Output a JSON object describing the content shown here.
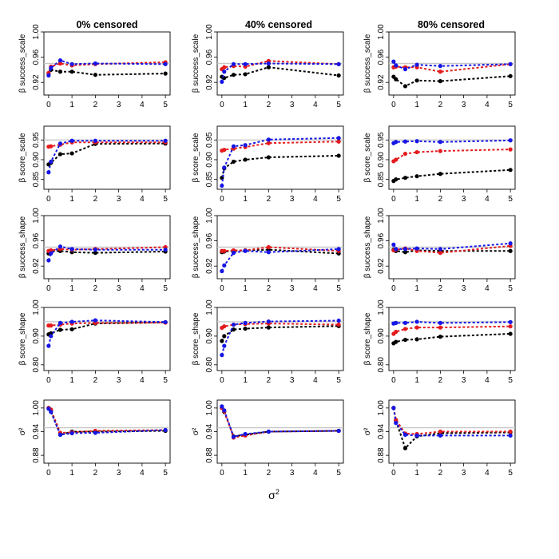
{
  "figure": {
    "column_titles": [
      "0% censored",
      "40% censored",
      "80% censored"
    ],
    "x_axis_title": "σ",
    "x_axis_title_superscript": "2",
    "x_ticks": [
      0,
      1,
      2,
      3,
      4,
      5
    ],
    "series_colors": {
      "black": "#000000",
      "red": "#e41a1c",
      "blue": "#1515e6"
    },
    "reference_line_color": "#c8c8c8"
  },
  "chart_data": [
    {
      "row": 0,
      "col": 0,
      "type": "line",
      "title": "0% censored",
      "ylabel": "β success_scale",
      "ylim": [
        0.9,
        1.0
      ],
      "yticks": [
        "0.92",
        "0.96",
        "1.00"
      ],
      "ref": 0.95,
      "x": [
        0,
        0.1,
        0.5,
        1,
        2,
        5
      ],
      "series": [
        {
          "name": "black",
          "values": [
            0.934,
            0.94,
            0.937,
            0.937,
            0.932,
            0.934
          ]
        },
        {
          "name": "red",
          "values": [
            0.935,
            0.945,
            0.95,
            0.947,
            0.949,
            0.952
          ]
        },
        {
          "name": "blue",
          "values": [
            0.931,
            0.943,
            0.955,
            0.949,
            0.95,
            0.949
          ]
        }
      ]
    },
    {
      "row": 0,
      "col": 1,
      "type": "line",
      "title": "40% censored",
      "ylabel": "β success_scale",
      "ylim": [
        0.9,
        1.0
      ],
      "yticks": [
        "0.92",
        "0.96",
        "1.00"
      ],
      "ref": 0.95,
      "x": [
        0,
        0.1,
        0.5,
        1,
        2,
        5
      ],
      "series": [
        {
          "name": "black",
          "values": [
            0.929,
            0.927,
            0.932,
            0.933,
            0.944,
            0.931
          ]
        },
        {
          "name": "red",
          "values": [
            0.941,
            0.944,
            0.946,
            0.945,
            0.954,
            0.949
          ]
        },
        {
          "name": "blue",
          "values": [
            0.921,
            0.937,
            0.949,
            0.949,
            0.95,
            0.949
          ]
        }
      ]
    },
    {
      "row": 0,
      "col": 2,
      "type": "line",
      "title": "80% censored",
      "ylabel": "β success_scale",
      "ylim": [
        0.9,
        1.0
      ],
      "yticks": [
        "0.92",
        "0.96",
        "1.00"
      ],
      "ref": 0.95,
      "x": [
        0,
        0.1,
        0.5,
        1,
        2,
        5
      ],
      "series": [
        {
          "name": "black",
          "values": [
            0.929,
            0.925,
            0.914,
            0.923,
            0.922,
            0.93
          ]
        },
        {
          "name": "red",
          "values": [
            0.944,
            0.945,
            0.944,
            0.944,
            0.937,
            0.949
          ]
        },
        {
          "name": "blue",
          "values": [
            0.953,
            0.947,
            0.941,
            0.948,
            0.946,
            0.949
          ]
        }
      ]
    },
    {
      "row": 1,
      "col": 0,
      "type": "line",
      "title": "0% censored",
      "ylabel": "β score_scale",
      "ylim": [
        0.825,
        0.985
      ],
      "yticks": [
        "0.85",
        "0.90",
        "0.95"
      ],
      "ref": 0.95,
      "x": [
        0,
        0.1,
        0.5,
        1,
        2,
        5
      ],
      "series": [
        {
          "name": "black",
          "values": [
            0.888,
            0.892,
            0.914,
            0.916,
            0.94,
            0.941
          ]
        },
        {
          "name": "red",
          "values": [
            0.933,
            0.934,
            0.938,
            0.944,
            0.944,
            0.944
          ]
        },
        {
          "name": "blue",
          "values": [
            0.868,
            0.895,
            0.941,
            0.948,
            0.948,
            0.948
          ]
        }
      ]
    },
    {
      "row": 1,
      "col": 1,
      "type": "line",
      "title": "40% censored",
      "ylabel": "β score_scale",
      "ylim": [
        0.825,
        0.985
      ],
      "yticks": [
        "0.85",
        "0.90",
        "0.95"
      ],
      "ref": 0.95,
      "x": [
        0,
        0.1,
        0.5,
        1,
        2,
        5
      ],
      "series": [
        {
          "name": "black",
          "values": [
            0.854,
            0.878,
            0.895,
            0.9,
            0.906,
            0.91
          ]
        },
        {
          "name": "red",
          "values": [
            0.923,
            0.925,
            0.928,
            0.932,
            0.942,
            0.946
          ]
        },
        {
          "name": "blue",
          "values": [
            0.834,
            0.88,
            0.934,
            0.937,
            0.951,
            0.955
          ]
        }
      ]
    },
    {
      "row": 1,
      "col": 2,
      "type": "line",
      "title": "80% censored",
      "ylabel": "β score_scale",
      "ylim": [
        0.825,
        0.985
      ],
      "yticks": [
        "0.85",
        "0.90",
        "0.95"
      ],
      "ref": 0.95,
      "x": [
        0,
        0.1,
        0.5,
        1,
        2,
        5
      ],
      "series": [
        {
          "name": "black",
          "values": [
            0.846,
            0.85,
            0.854,
            0.858,
            0.864,
            0.874
          ]
        },
        {
          "name": "red",
          "values": [
            0.896,
            0.9,
            0.915,
            0.919,
            0.922,
            0.926
          ]
        },
        {
          "name": "blue",
          "values": [
            0.942,
            0.945,
            0.946,
            0.947,
            0.945,
            0.949
          ]
        }
      ]
    },
    {
      "row": 2,
      "col": 0,
      "type": "line",
      "title": "0% censored",
      "ylabel": "β success_shape",
      "ylim": [
        0.9,
        1.0
      ],
      "yticks": [
        "0.92",
        "0.96",
        "1.00"
      ],
      "ref": 0.95,
      "x": [
        0,
        0.1,
        0.5,
        1,
        2,
        5
      ],
      "series": [
        {
          "name": "black",
          "values": [
            0.94,
            0.943,
            0.944,
            0.942,
            0.941,
            0.943
          ]
        },
        {
          "name": "red",
          "values": [
            0.944,
            0.945,
            0.947,
            0.946,
            0.947,
            0.95
          ]
        },
        {
          "name": "blue",
          "values": [
            0.929,
            0.94,
            0.951,
            0.947,
            0.946,
            0.946
          ]
        }
      ]
    },
    {
      "row": 2,
      "col": 1,
      "type": "line",
      "title": "40% censored",
      "ylabel": "β success_shape",
      "ylim": [
        0.9,
        1.0
      ],
      "yticks": [
        "0.92",
        "0.96",
        "1.00"
      ],
      "ref": 0.95,
      "x": [
        0,
        0.1,
        0.5,
        1,
        2,
        5
      ],
      "series": [
        {
          "name": "black",
          "values": [
            0.942,
            0.943,
            0.944,
            0.945,
            0.946,
            0.94
          ]
        },
        {
          "name": "red",
          "values": [
            0.944,
            0.944,
            0.945,
            0.945,
            0.95,
            0.944
          ]
        },
        {
          "name": "blue",
          "values": [
            0.912,
            0.921,
            0.941,
            0.944,
            0.942,
            0.947
          ]
        }
      ]
    },
    {
      "row": 2,
      "col": 2,
      "type": "line",
      "title": "80% censored",
      "ylabel": "β success_shape",
      "ylim": [
        0.9,
        1.0
      ],
      "yticks": [
        "0.92",
        "0.96",
        "1.00"
      ],
      "ref": 0.95,
      "x": [
        0,
        0.1,
        0.5,
        1,
        2,
        5
      ],
      "series": [
        {
          "name": "black",
          "values": [
            0.946,
            0.944,
            0.942,
            0.945,
            0.944,
            0.944
          ]
        },
        {
          "name": "red",
          "values": [
            0.945,
            0.946,
            0.948,
            0.944,
            0.941,
            0.952
          ]
        },
        {
          "name": "blue",
          "values": [
            0.954,
            0.947,
            0.947,
            0.948,
            0.947,
            0.956
          ]
        }
      ]
    },
    {
      "row": 3,
      "col": 0,
      "type": "line",
      "title": "0% censored",
      "ylabel": "β score_shape",
      "ylim": [
        0.78,
        1.0
      ],
      "yticks": [
        "0.80",
        "0.90",
        "1.00"
      ],
      "ref": 0.95,
      "x": [
        0,
        0.1,
        0.5,
        1,
        2,
        5
      ],
      "series": [
        {
          "name": "black",
          "values": [
            0.906,
            0.91,
            0.922,
            0.924,
            0.944,
            0.948
          ]
        },
        {
          "name": "red",
          "values": [
            0.937,
            0.937,
            0.94,
            0.944,
            0.946,
            0.947
          ]
        },
        {
          "name": "blue",
          "values": [
            0.866,
            0.9,
            0.946,
            0.95,
            0.955,
            0.949
          ]
        }
      ]
    },
    {
      "row": 3,
      "col": 1,
      "type": "line",
      "title": "40% censored",
      "ylabel": "β score_shape",
      "ylim": [
        0.78,
        1.0
      ],
      "yticks": [
        "0.80",
        "0.90",
        "1.00"
      ],
      "ref": 0.95,
      "x": [
        0,
        0.1,
        0.5,
        1,
        2,
        5
      ],
      "series": [
        {
          "name": "black",
          "values": [
            0.883,
            0.9,
            0.923,
            0.926,
            0.93,
            0.935
          ]
        },
        {
          "name": "red",
          "values": [
            0.929,
            0.934,
            0.94,
            0.942,
            0.944,
            0.94
          ]
        },
        {
          "name": "blue",
          "values": [
            0.834,
            0.866,
            0.94,
            0.946,
            0.951,
            0.954
          ]
        }
      ]
    },
    {
      "row": 3,
      "col": 2,
      "type": "line",
      "title": "80% censored",
      "ylabel": "β score_shape",
      "ylim": [
        0.78,
        1.0
      ],
      "yticks": [
        "0.80",
        "0.90",
        "1.00"
      ],
      "ref": 0.95,
      "x": [
        0,
        0.1,
        0.5,
        1,
        2,
        5
      ],
      "series": [
        {
          "name": "black",
          "values": [
            0.875,
            0.88,
            0.887,
            0.889,
            0.898,
            0.908
          ]
        },
        {
          "name": "red",
          "values": [
            0.908,
            0.915,
            0.925,
            0.93,
            0.93,
            0.934
          ]
        },
        {
          "name": "blue",
          "values": [
            0.944,
            0.946,
            0.946,
            0.95,
            0.946,
            0.949
          ]
        }
      ]
    },
    {
      "row": 4,
      "col": 0,
      "type": "line",
      "title": "0% censored",
      "ylabel": "σ²",
      "ylim": [
        0.86,
        1.02
      ],
      "yticks": [
        "0.88",
        "0.94",
        "1.00"
      ],
      "ref": 0.95,
      "x": [
        0,
        0.1,
        0.5,
        1,
        2,
        5
      ],
      "series": [
        {
          "name": "black",
          "values": [
            1.0,
            0.993,
            0.932,
            0.94,
            0.94,
            0.942
          ]
        },
        {
          "name": "red",
          "values": [
            1.0,
            0.996,
            0.937,
            0.938,
            0.942,
            0.944
          ]
        },
        {
          "name": "blue",
          "values": [
            0.998,
            0.99,
            0.932,
            0.936,
            0.937,
            0.944
          ]
        }
      ]
    },
    {
      "row": 4,
      "col": 1,
      "type": "line",
      "title": "40% censored",
      "ylabel": "σ²",
      "ylim": [
        0.86,
        1.02
      ],
      "yticks": [
        "0.88",
        "0.94",
        "1.00"
      ],
      "ref": 0.95,
      "x": [
        0,
        0.1,
        0.5,
        1,
        2,
        5
      ],
      "series": [
        {
          "name": "black",
          "values": [
            1.0,
            0.99,
            0.928,
            0.932,
            0.94,
            0.942
          ]
        },
        {
          "name": "red",
          "values": [
            1.0,
            0.992,
            0.925,
            0.93,
            0.94,
            0.942
          ]
        },
        {
          "name": "blue",
          "values": [
            1.004,
            0.994,
            0.927,
            0.934,
            0.94,
            0.942
          ]
        }
      ]
    },
    {
      "row": 4,
      "col": 2,
      "type": "line",
      "title": "80% censored",
      "ylabel": "σ²",
      "ylim": [
        0.86,
        1.02
      ],
      "yticks": [
        "0.88",
        "0.94",
        "1.00"
      ],
      "ref": 0.95,
      "x": [
        0,
        0.1,
        0.5,
        1,
        2,
        5
      ],
      "series": [
        {
          "name": "black",
          "values": [
            1.0,
            0.968,
            0.898,
            0.928,
            0.936,
            0.938
          ]
        },
        {
          "name": "red",
          "values": [
            1.0,
            0.97,
            0.935,
            0.934,
            0.94,
            0.94
          ]
        },
        {
          "name": "blue",
          "values": [
            1.0,
            0.962,
            0.932,
            0.93,
            0.93,
            0.93
          ]
        }
      ]
    }
  ]
}
